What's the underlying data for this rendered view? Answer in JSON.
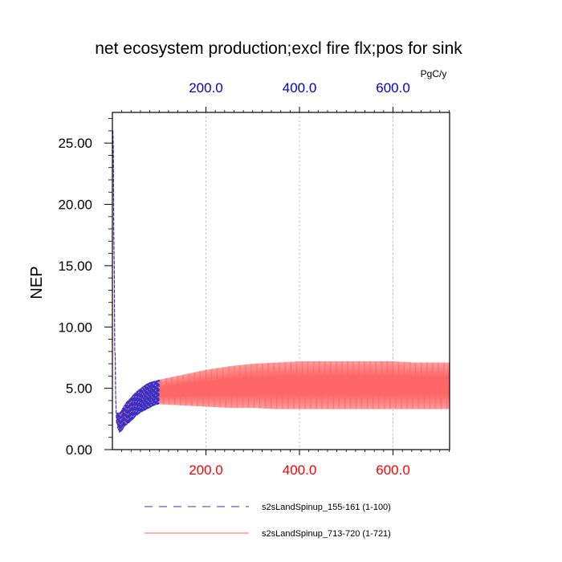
{
  "chart_data": {
    "type": "line",
    "title": "net ecosystem production;excl fire flx;pos for sink",
    "ylabel": "NEP",
    "units_label": "PgC/y",
    "xlim": [
      0,
      721
    ],
    "ylim": [
      0,
      27.5
    ],
    "grid": "vertical dotted at x ticks",
    "x_ticks_bottom": {
      "values": [
        200,
        400,
        600
      ],
      "labels": [
        "200.0",
        "400.0",
        "600.0"
      ],
      "color": "#ff0000"
    },
    "x_ticks_top": {
      "values": [
        200,
        400,
        600
      ],
      "labels": [
        "200.0",
        "400.0",
        "600.0"
      ],
      "color": "#0000cc"
    },
    "y_ticks": {
      "values": [
        0,
        5,
        10,
        15,
        20,
        25
      ],
      "labels": [
        "0.00",
        "5.00",
        "10.00",
        "15.00",
        "20.00",
        "25.00"
      ]
    },
    "legend_placement": "bottom",
    "series": [
      {
        "name": "s2sLandSpinup_155-161 (1-100)",
        "color": "#3333cc",
        "style": "dashed",
        "x_range": [
          1,
          100
        ],
        "samples": {
          "x": [
            1,
            2,
            5,
            8,
            10,
            15,
            20,
            25,
            30,
            40,
            50,
            60,
            70,
            80,
            90,
            100
          ],
          "high": [
            26.3,
            24.5,
            10.0,
            3.2,
            3.0,
            3.0,
            3.3,
            3.6,
            3.9,
            4.3,
            4.7,
            5.0,
            5.3,
            5.5,
            5.6,
            5.7
          ],
          "low": [
            26.0,
            22.0,
            8.0,
            2.4,
            1.8,
            1.4,
            1.5,
            1.8,
            2.0,
            2.3,
            2.7,
            3.0,
            3.2,
            3.4,
            3.6,
            3.7
          ]
        }
      },
      {
        "name": "s2sLandSpinup_713-720 (1-721)",
        "color": "#ff6666",
        "style": "solid",
        "x_range": [
          1,
          721
        ],
        "samples": {
          "x": [
            1,
            2,
            5,
            8,
            10,
            15,
            20,
            25,
            30,
            40,
            50,
            60,
            70,
            80,
            90,
            100,
            150,
            200,
            250,
            300,
            350,
            400,
            450,
            500,
            550,
            600,
            650,
            700,
            721
          ],
          "high": [
            26.3,
            24.5,
            10.0,
            3.2,
            3.0,
            3.0,
            3.3,
            3.6,
            3.9,
            4.3,
            4.7,
            5.0,
            5.3,
            5.5,
            5.6,
            5.7,
            6.1,
            6.5,
            6.8,
            7.0,
            7.1,
            7.2,
            7.2,
            7.2,
            7.2,
            7.2,
            7.1,
            7.1,
            7.1
          ],
          "low": [
            26.0,
            22.0,
            8.0,
            2.4,
            1.8,
            1.4,
            1.5,
            1.8,
            2.0,
            2.3,
            2.7,
            3.0,
            3.2,
            3.4,
            3.6,
            3.7,
            3.6,
            3.5,
            3.4,
            3.4,
            3.3,
            3.3,
            3.3,
            3.3,
            3.3,
            3.3,
            3.3,
            3.3,
            3.3
          ]
        }
      }
    ]
  }
}
